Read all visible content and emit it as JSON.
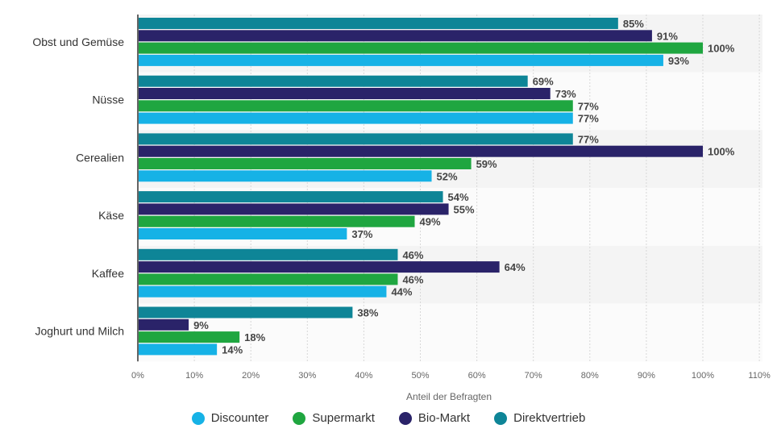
{
  "chart_data": {
    "type": "bar",
    "orientation": "horizontal",
    "categories": [
      "Obst und Gemüse",
      "Nüsse",
      "Cerealien",
      "Käse",
      "Kaffee",
      "Joghurt und Milch"
    ],
    "series": [
      {
        "name": "Direktvertrieb",
        "color": "#0e8597",
        "values": [
          85,
          69,
          77,
          54,
          46,
          38
        ]
      },
      {
        "name": "Bio-Markt",
        "color": "#2a2369",
        "values": [
          91,
          73,
          100,
          55,
          64,
          9
        ]
      },
      {
        "name": "Supermarkt",
        "color": "#1fa640",
        "values": [
          100,
          77,
          59,
          49,
          46,
          18
        ]
      },
      {
        "name": "Discounter",
        "color": "#16b2e6",
        "values": [
          93,
          77,
          52,
          37,
          44,
          14
        ]
      }
    ],
    "legend_order": [
      "Discounter",
      "Supermarkt",
      "Bio-Markt",
      "Direktvertrieb"
    ],
    "xlabel": "Anteil der Befragten",
    "xlim": [
      0,
      110
    ],
    "xticks": [
      "0%",
      "10%",
      "20%",
      "30%",
      "40%",
      "50%",
      "60%",
      "70%",
      "80%",
      "90%",
      "100%",
      "110%"
    ],
    "value_suffix": "%",
    "grid": true,
    "legend_position": "bottom"
  }
}
